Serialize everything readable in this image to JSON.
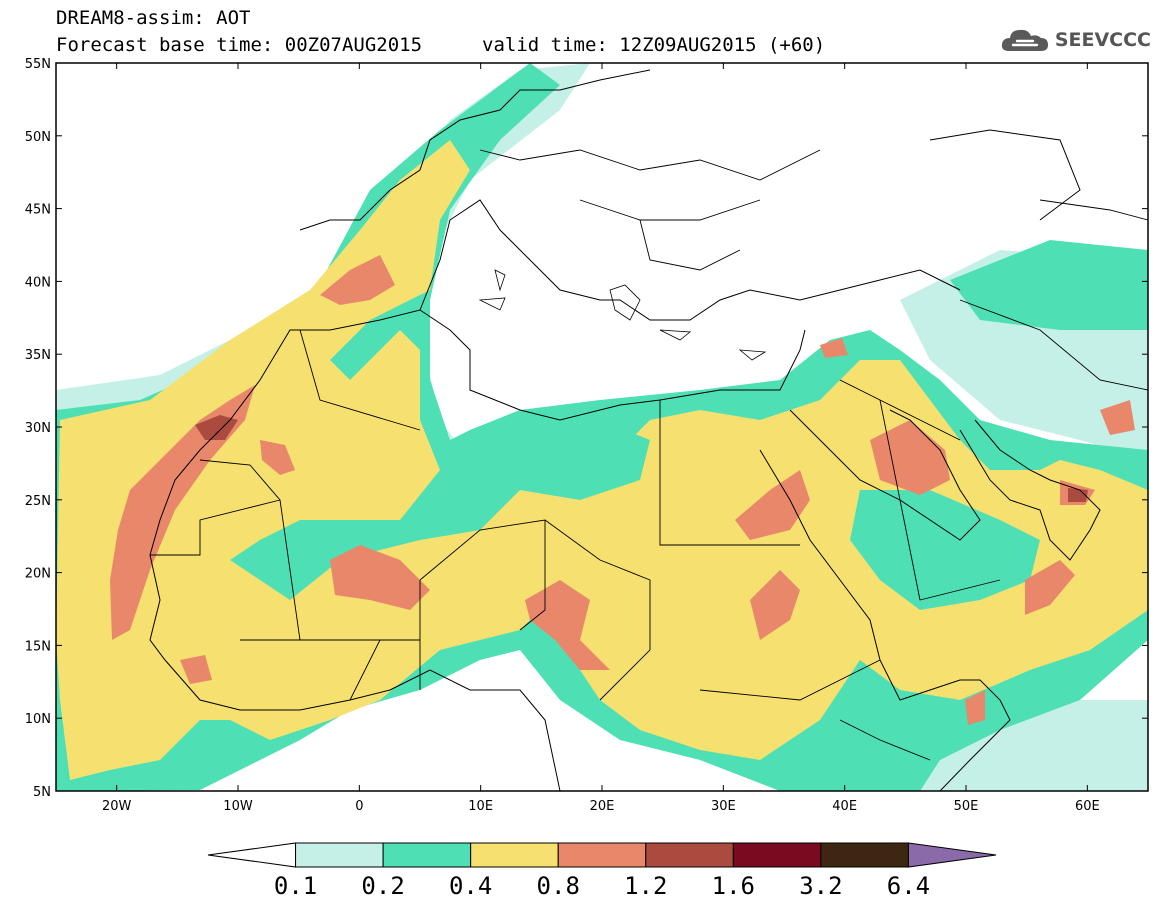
{
  "header": {
    "line1": "DREAM8-assim: AOT",
    "base_time": "Forecast base time: 00Z07AUG2015",
    "valid_time": "valid time: 12Z09AUG2015 (+60)"
  },
  "logo": {
    "text": "SEEVCCC",
    "icon": "cloud-icon"
  },
  "map": {
    "lon_range": [
      -25,
      65
    ],
    "lat_range": [
      5,
      55
    ],
    "lat_ticks": [
      "55N",
      "50N",
      "45N",
      "40N",
      "35N",
      "30N",
      "25N",
      "20N",
      "15N",
      "10N",
      "5N"
    ],
    "lon_ticks": [
      "20W",
      "10W",
      "0",
      "10E",
      "20E",
      "30E",
      "40E",
      "50E",
      "60E"
    ]
  },
  "colorbar": {
    "labels": [
      "0.1",
      "0.2",
      "0.4",
      "0.8",
      "1.2",
      "1.6",
      "3.2",
      "6.4"
    ],
    "colors": [
      "#ffffff",
      "#c4f0e8",
      "#4fdfb4",
      "#f5e070",
      "#e8876a",
      "#ab4b3f",
      "#7a0a20",
      "#3d2712",
      "#8a6aa8"
    ]
  },
  "chart_data": {
    "type": "heatmap",
    "title": "DREAM8-assim: AOT",
    "variable": "AOT",
    "levels": [
      0.1,
      0.2,
      0.4,
      0.8,
      1.2,
      1.6,
      3.2,
      6.4
    ],
    "xlim": [
      -25,
      65
    ],
    "ylim": [
      5,
      55
    ]
  }
}
